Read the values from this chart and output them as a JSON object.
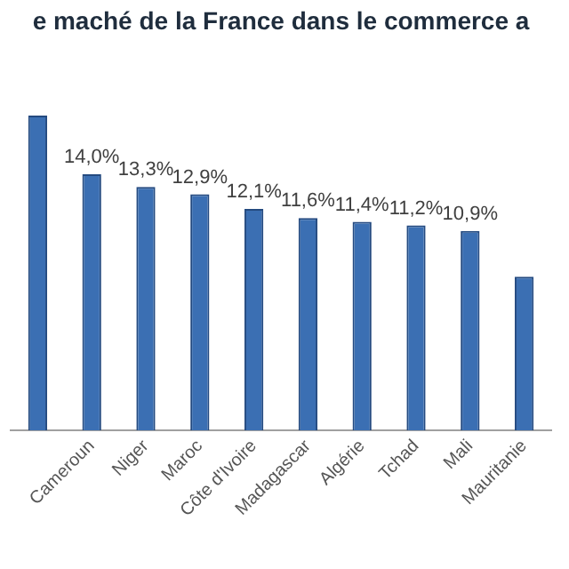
{
  "chart_data": {
    "type": "bar",
    "title": "e maché de la France dans le commerce a",
    "categories": [
      null,
      "Cameroun",
      "Niger",
      "Maroc",
      "Côte d'Ivoire",
      "Madagascar",
      "Algérie",
      "Tchad",
      "Mali",
      "Mauritanie"
    ],
    "values": [
      17.2,
      14.0,
      13.3,
      12.9,
      12.1,
      11.6,
      11.4,
      11.2,
      10.9,
      8.4
    ],
    "value_labels": [
      null,
      "14,0%",
      "13,3%",
      "12,9%",
      "12,1%",
      "11,6%",
      "11,4%",
      "11,2%",
      "10,9%",
      null
    ],
    "color": "#3b6fb3",
    "grid": false,
    "legend": false
  }
}
